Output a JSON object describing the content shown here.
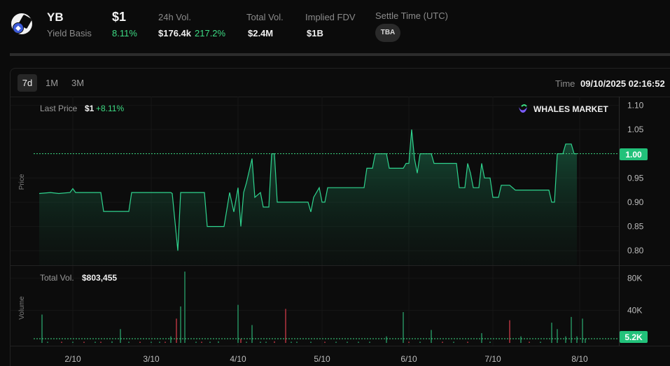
{
  "token": {
    "symbol": "YB",
    "name": "Yield Basis",
    "price": "$1",
    "price_change": "8.11%"
  },
  "stats": {
    "vol24_label": "24h Vol.",
    "vol24_value": "$176.4k",
    "vol24_change": "217.2%",
    "total_vol_label": "Total Vol.",
    "total_vol_value": "$2.4M",
    "fdv_label": "Implied FDV",
    "fdv_value": "$1B",
    "settle_label": "Settle Time (UTC)",
    "settle_value": "TBA"
  },
  "toolbar": {
    "timeframes": [
      "7d",
      "1M",
      "3M"
    ],
    "active": "7d",
    "time_label": "Time",
    "time_value": "09/10/2025 02:16:52"
  },
  "colors": {
    "up": "#3ddc84",
    "down": "#b8313d",
    "line": "#2fd38e",
    "background": "#0b0b0b"
  },
  "chart_data": [
    {
      "type": "area",
      "name": "price",
      "legend_label": "Last Price",
      "legend_value": "$1",
      "legend_change": "+8.11%",
      "watermark": "WHALES MARKET",
      "ylabel": "Price",
      "ylim": [
        0.77,
        1.115
      ],
      "y_ticks": [
        "1.10",
        "1.05",
        "0.95",
        "0.90",
        "0.85",
        "0.80"
      ],
      "last_value_label": "1.00",
      "last_value": 1.0,
      "x_ticks": [
        "2/10",
        "3/10",
        "4/10",
        "5/10",
        "6/10",
        "7/10",
        "8/10"
      ],
      "x_tick_values": [
        0,
        28,
        59,
        89,
        120,
        150,
        181
      ],
      "x_range": [
        -14,
        195
      ],
      "points": [
        [
          -12,
          0.918
        ],
        [
          -8,
          0.92
        ],
        [
          -5,
          0.918
        ],
        [
          -1,
          0.92
        ],
        [
          0,
          0.928
        ],
        [
          1,
          0.92
        ],
        [
          5,
          0.92
        ],
        [
          10,
          0.92
        ],
        [
          11,
          0.881
        ],
        [
          20,
          0.881
        ],
        [
          21,
          0.92
        ],
        [
          35,
          0.92
        ],
        [
          35.5,
          0.918
        ],
        [
          37.5,
          0.8
        ],
        [
          38.5,
          0.92
        ],
        [
          47,
          0.92
        ],
        [
          48,
          0.85
        ],
        [
          54,
          0.85
        ],
        [
          56,
          0.92
        ],
        [
          57.5,
          0.88
        ],
        [
          59,
          0.93
        ],
        [
          60,
          0.85
        ],
        [
          61,
          0.92
        ],
        [
          62,
          0.94
        ],
        [
          64,
          0.99
        ],
        [
          65,
          0.91
        ],
        [
          67,
          0.92
        ],
        [
          68,
          0.89
        ],
        [
          70,
          0.89
        ],
        [
          71,
          1.0
        ],
        [
          72,
          1.0
        ],
        [
          73,
          0.9
        ],
        [
          84,
          0.9
        ],
        [
          85,
          0.88
        ],
        [
          86,
          0.91
        ],
        [
          88,
          0.93
        ],
        [
          89,
          0.9
        ],
        [
          90,
          0.9
        ],
        [
          91,
          0.93
        ],
        [
          104,
          0.93
        ],
        [
          105,
          0.97
        ],
        [
          107,
          0.97
        ],
        [
          108,
          1.0
        ],
        [
          112,
          1.0
        ],
        [
          113,
          0.97
        ],
        [
          118,
          0.97
        ],
        [
          119,
          0.98
        ],
        [
          120,
          0.98
        ],
        [
          121,
          1.05
        ],
        [
          122,
          0.99
        ],
        [
          123,
          0.96
        ],
        [
          124,
          1.0
        ],
        [
          128,
          1.0
        ],
        [
          129,
          0.98
        ],
        [
          137,
          0.98
        ],
        [
          138,
          0.93
        ],
        [
          140,
          0.93
        ],
        [
          141,
          0.98
        ],
        [
          142,
          0.96
        ],
        [
          143,
          0.93
        ],
        [
          145,
          0.93
        ],
        [
          146,
          0.98
        ],
        [
          147,
          0.95
        ],
        [
          149,
          0.95
        ],
        [
          150,
          0.91
        ],
        [
          152,
          0.91
        ],
        [
          153,
          0.935
        ],
        [
          156,
          0.935
        ],
        [
          158,
          0.925
        ],
        [
          170,
          0.925
        ],
        [
          171,
          0.9
        ],
        [
          172,
          0.9
        ],
        [
          173,
          1.0
        ],
        [
          175,
          1.0
        ],
        [
          176,
          1.02
        ],
        [
          178,
          1.02
        ],
        [
          179,
          1.0
        ],
        [
          180,
          1.0
        ]
      ]
    },
    {
      "type": "bar",
      "name": "volume",
      "legend_label": "Total Vol.",
      "legend_value": "$803,455",
      "ylabel": "Volume",
      "ylim": [
        0,
        95000
      ],
      "y_ticks": [
        "80K",
        "40K"
      ],
      "y_tick_values": [
        80000,
        40000
      ],
      "last_value_label": "5.2K",
      "last_value": 5200,
      "bars": [
        [
          -11,
          35000,
          "up"
        ],
        [
          -9,
          1500,
          "up"
        ],
        [
          -4,
          1500,
          "down"
        ],
        [
          0,
          1500,
          "up"
        ],
        [
          4,
          1500,
          "down"
        ],
        [
          8,
          1500,
          "up"
        ],
        [
          10,
          1500,
          "down"
        ],
        [
          14,
          2000,
          "up"
        ],
        [
          17,
          17000,
          "up"
        ],
        [
          20,
          1500,
          "up"
        ],
        [
          24,
          1500,
          "down"
        ],
        [
          28,
          1500,
          "up"
        ],
        [
          31,
          1500,
          "up"
        ],
        [
          33,
          1500,
          "down"
        ],
        [
          35,
          8000,
          "up"
        ],
        [
          37,
          30000,
          "down"
        ],
        [
          38.5,
          45000,
          "up"
        ],
        [
          40,
          88000,
          "up"
        ],
        [
          44,
          1500,
          "up"
        ],
        [
          46,
          1500,
          "down"
        ],
        [
          49,
          1500,
          "up"
        ],
        [
          52,
          2000,
          "up"
        ],
        [
          59,
          47000,
          "up"
        ],
        [
          60,
          5000,
          "down"
        ],
        [
          62,
          1500,
          "up"
        ],
        [
          64,
          22000,
          "up"
        ],
        [
          67,
          1500,
          "up"
        ],
        [
          69,
          1500,
          "up"
        ],
        [
          72,
          2000,
          "down"
        ],
        [
          76,
          42000,
          "down"
        ],
        [
          78,
          1500,
          "up"
        ],
        [
          80,
          1500,
          "up"
        ],
        [
          85,
          1500,
          "up"
        ],
        [
          90,
          1500,
          "down"
        ],
        [
          94,
          1500,
          "up"
        ],
        [
          98,
          1500,
          "up"
        ],
        [
          102,
          1500,
          "up"
        ],
        [
          106,
          1500,
          "up"
        ],
        [
          112,
          8000,
          "up"
        ],
        [
          118,
          38000,
          "up"
        ],
        [
          120,
          1500,
          "down"
        ],
        [
          124,
          1500,
          "up"
        ],
        [
          128,
          16000,
          "up"
        ],
        [
          132,
          1500,
          "down"
        ],
        [
          136,
          1500,
          "up"
        ],
        [
          141,
          1500,
          "down"
        ],
        [
          146,
          12000,
          "up"
        ],
        [
          149,
          1500,
          "up"
        ],
        [
          156,
          28000,
          "down"
        ],
        [
          160,
          8000,
          "up"
        ],
        [
          163,
          1500,
          "down"
        ],
        [
          167,
          1500,
          "up"
        ],
        [
          171,
          25000,
          "up"
        ],
        [
          173,
          17000,
          "up"
        ],
        [
          176,
          8000,
          "up"
        ],
        [
          178,
          32000,
          "up"
        ],
        [
          180,
          8000,
          "up"
        ],
        [
          182,
          30000,
          "up"
        ],
        [
          183,
          5200,
          "up"
        ]
      ]
    }
  ]
}
